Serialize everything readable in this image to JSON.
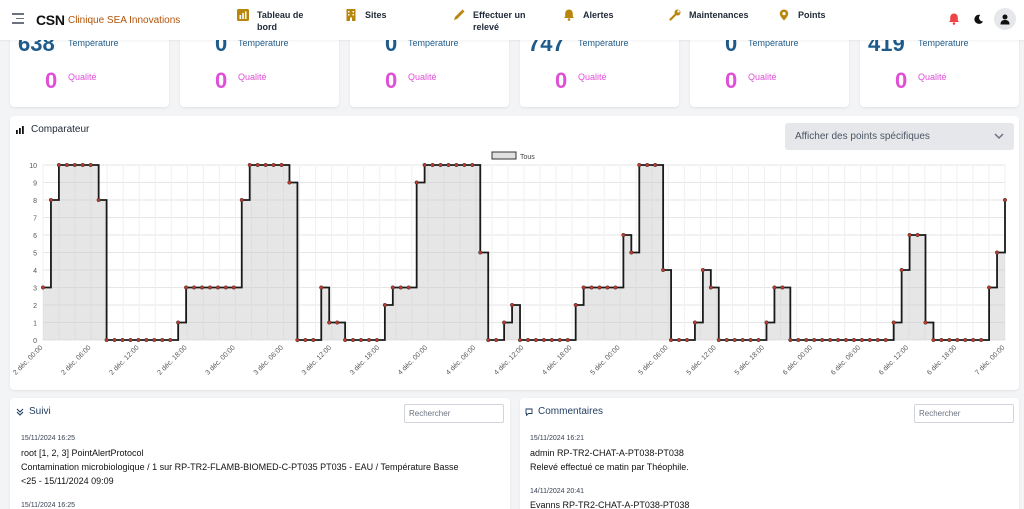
{
  "brand": {
    "name": "CSN",
    "subtitle": "Clinique SEA Innovations"
  },
  "nav": [
    {
      "label1": "Tableau de",
      "label2": "bord",
      "icon": "chart-icon"
    },
    {
      "label1": "Sites",
      "label2": "",
      "icon": "building-icon"
    },
    {
      "label1": "Effectuer un",
      "label2": "relevé",
      "icon": "pencil-icon"
    },
    {
      "label1": "Alertes",
      "label2": "",
      "icon": "bell-icon"
    },
    {
      "label1": "Maintenances",
      "label2": "",
      "icon": "wrench-icon"
    },
    {
      "label1": "Points",
      "label2": "",
      "icon": "pin-icon"
    }
  ],
  "colors": {
    "accent": "#1e5b8a",
    "quality": "#e04fd8",
    "nav_icon": "#b8860b",
    "alert": "#ef4444"
  },
  "stats": [
    {
      "value": "638",
      "label": "Température",
      "quality_value": "0",
      "quality_label": "Qualité"
    },
    {
      "value": "0",
      "label": "Température",
      "quality_value": "0",
      "quality_label": "Qualité"
    },
    {
      "value": "0",
      "label": "Température",
      "quality_value": "0",
      "quality_label": "Qualité"
    },
    {
      "value": "747",
      "label": "Température",
      "quality_value": "0",
      "quality_label": "Qualité"
    },
    {
      "value": "0",
      "label": "Température",
      "quality_value": "0",
      "quality_label": "Qualité"
    },
    {
      "value": "419",
      "label": "Température",
      "quality_value": "0",
      "quality_label": "Qualité"
    }
  ],
  "comparator": {
    "title": "Comparateur",
    "select_label": "Afficher des points spécifiques"
  },
  "chart_data": {
    "type": "area",
    "step": true,
    "ylim": [
      0,
      10
    ],
    "yticks": [
      "0",
      "1",
      "2",
      "3",
      "4",
      "5",
      "6",
      "7",
      "8",
      "9",
      "10"
    ],
    "xticks": [
      "2 déc. 00:00",
      "2 déc. 06:00",
      "2 déc. 12:00",
      "2 déc. 18:00",
      "3 déc. 00:00",
      "3 déc. 06:00",
      "3 déc. 12:00",
      "3 déc. 18:00",
      "4 déc. 00:00",
      "4 déc. 06:00",
      "4 déc. 12:00",
      "4 déc. 18:00",
      "5 déc. 00:00",
      "5 déc. 06:00",
      "5 déc. 12:00",
      "5 déc. 18:00",
      "6 déc. 00:00",
      "6 déc. 06:00",
      "6 déc. 12:00",
      "6 déc. 18:00",
      "7 déc. 00:00"
    ],
    "legend": "top-center",
    "grid": true,
    "series": [
      {
        "name": "Tous",
        "values": [
          3,
          8,
          10,
          10,
          10,
          10,
          10,
          8,
          0,
          0,
          0,
          0,
          0,
          0,
          0,
          0,
          0,
          1,
          3,
          3,
          3,
          3,
          3,
          3,
          3,
          8,
          10,
          10,
          10,
          10,
          10,
          9,
          0,
          0,
          0,
          3,
          1,
          1,
          0,
          0,
          0,
          0,
          0,
          2,
          3,
          3,
          3,
          9,
          10,
          10,
          10,
          10,
          10,
          10,
          10,
          5,
          0,
          0,
          1,
          2,
          0,
          0,
          0,
          0,
          0,
          0,
          0,
          2,
          3,
          3,
          3,
          3,
          3,
          6,
          5,
          10,
          10,
          10,
          4,
          0,
          0,
          0,
          1,
          4,
          3,
          0,
          0,
          0,
          0,
          0,
          0,
          1,
          3,
          3,
          0,
          0,
          0,
          0,
          0,
          0,
          0,
          0,
          0,
          0,
          0,
          0,
          0,
          1,
          4,
          6,
          6,
          1,
          0,
          0,
          0,
          0,
          0,
          0,
          0,
          3,
          5,
          8
        ]
      }
    ]
  },
  "suivi": {
    "title": "Suivi",
    "search_placeholder": "Rechercher",
    "entries": [
      {
        "time": "15/11/2024 16:25",
        "user": "root  [1, 2, 3]  PointAlertProtocol",
        "line1": "Contamination microbiologique / 1 sur RP-TR2-FLAMB-BIOMED-C-PT035 PT035 - EAU / Température Basse",
        "line2": "<25 - 15/11/2024 09:09"
      },
      {
        "time": "15/11/2024 16:25"
      }
    ]
  },
  "commentaires": {
    "title": "Commentaires",
    "search_placeholder": "Rechercher",
    "entries": [
      {
        "time": "15/11/2024 16:21",
        "user": "admin  RP-TR2-CHAT-A-PT038-PT038",
        "line1": "Relevé effectué ce matin par Théophile."
      },
      {
        "time": "14/11/2024 20:41",
        "user": "Evanns  RP-TR2-CHAT-A-PT038-PT038"
      }
    ]
  }
}
